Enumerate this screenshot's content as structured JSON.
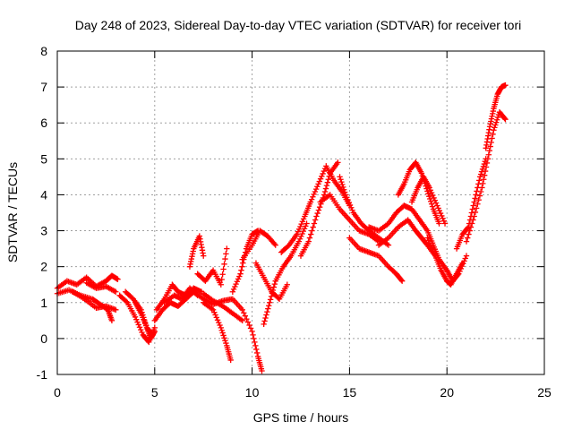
{
  "chart_data": {
    "type": "scatter",
    "title": "Day 248 of 2023, Sidereal Day-to-day VTEC variation (SDTVAR) for receiver tori",
    "xlabel": "GPS time / hours",
    "ylabel": "SDTVAR / TECUs",
    "xlim": [
      0,
      25
    ],
    "ylim": [
      -1,
      8
    ],
    "xticks": [
      0,
      5,
      10,
      15,
      20,
      25
    ],
    "yticks": [
      -1,
      0,
      1,
      2,
      3,
      4,
      5,
      6,
      7,
      8
    ],
    "grid": true,
    "marker": "+",
    "series": [
      {
        "name": "SDTVAR",
        "color": "#ff0000",
        "tracks": [
          {
            "x": [
              0.0,
              0.5,
              1.0,
              1.5,
              2.0,
              2.5,
              2.8,
              3.1
            ],
            "y": [
              1.4,
              1.6,
              1.5,
              1.7,
              1.45,
              1.6,
              1.75,
              1.65
            ]
          },
          {
            "x": [
              0.0,
              0.6,
              1.2,
              1.8,
              2.2,
              2.6,
              2.8
            ],
            "y": [
              1.25,
              1.35,
              1.2,
              1.1,
              0.95,
              0.8,
              0.5
            ]
          },
          {
            "x": [
              0.8,
              1.4,
              2.0,
              2.5,
              3.0
            ],
            "y": [
              1.3,
              1.1,
              0.85,
              0.9,
              0.8
            ]
          },
          {
            "x": [
              1.5,
              2.0,
              2.5,
              3.0
            ],
            "y": [
              1.55,
              1.4,
              1.45,
              1.3
            ]
          },
          {
            "x": [
              3.2,
              3.6,
              4.0,
              4.4,
              4.7,
              5.0
            ],
            "y": [
              1.2,
              1.0,
              0.6,
              0.1,
              -0.1,
              0.3
            ]
          },
          {
            "x": [
              3.5,
              3.9,
              4.3,
              4.6,
              4.9
            ],
            "y": [
              1.3,
              1.1,
              0.8,
              0.3,
              0.1
            ]
          },
          {
            "x": [
              4.0,
              4.3,
              4.6,
              4.8,
              5.0
            ],
            "y": [
              1.0,
              0.7,
              0.3,
              0.0,
              0.2
            ]
          },
          {
            "x": [
              5.0,
              5.4,
              5.8,
              6.2,
              6.6,
              7.0
            ],
            "y": [
              0.5,
              0.8,
              1.0,
              0.9,
              1.1,
              1.3
            ]
          },
          {
            "x": [
              5.1,
              5.5,
              5.9,
              6.2,
              6.6,
              7.0,
              7.4
            ],
            "y": [
              0.8,
              1.1,
              1.5,
              1.3,
              1.2,
              1.4,
              1.3
            ]
          },
          {
            "x": [
              5.5,
              6.0,
              6.4,
              6.8,
              7.2
            ],
            "y": [
              1.0,
              1.2,
              1.1,
              1.4,
              1.2
            ]
          },
          {
            "x": [
              6.8,
              7.0,
              7.3,
              7.5
            ],
            "y": [
              2.0,
              2.5,
              2.85,
              2.3
            ]
          },
          {
            "x": [
              7.2,
              7.6,
              8.0,
              8.4,
              8.7
            ],
            "y": [
              1.8,
              1.6,
              1.9,
              1.5,
              2.5
            ]
          },
          {
            "x": [
              7.0,
              7.5,
              8.0,
              8.5,
              9.0,
              9.5,
              10.0,
              10.3,
              10.5
            ],
            "y": [
              1.3,
              1.1,
              0.95,
              1.05,
              1.1,
              0.8,
              0.2,
              -0.5,
              -0.9
            ]
          },
          {
            "x": [
              7.5,
              8.0,
              8.4,
              8.7,
              8.9
            ],
            "y": [
              1.0,
              0.8,
              0.3,
              -0.2,
              -0.6
            ]
          },
          {
            "x": [
              7.5,
              8.0,
              8.5,
              9.0,
              9.5
            ],
            "y": [
              1.25,
              1.05,
              0.9,
              0.7,
              0.5
            ]
          },
          {
            "x": [
              9.0,
              9.4,
              9.7,
              10.0,
              10.3
            ],
            "y": [
              1.3,
              1.8,
              2.5,
              2.9,
              3.0
            ]
          },
          {
            "x": [
              9.5,
              10.0,
              10.4,
              10.8,
              11.2
            ],
            "y": [
              2.2,
              2.6,
              3.0,
              2.85,
              2.6
            ]
          },
          {
            "x": [
              10.2,
              10.6,
              11.0,
              11.4,
              11.8
            ],
            "y": [
              2.1,
              1.7,
              1.3,
              1.1,
              1.5
            ]
          },
          {
            "x": [
              10.6,
              10.9,
              11.2,
              11.6,
              12.0,
              12.4,
              12.8
            ],
            "y": [
              0.4,
              1.0,
              1.6,
              2.0,
              2.3,
              2.7,
              3.2
            ]
          },
          {
            "x": [
              11.5,
              11.9,
              12.3,
              12.7,
              13.0
            ],
            "y": [
              2.4,
              2.6,
              2.9,
              3.4,
              3.8
            ]
          },
          {
            "x": [
              12.5,
              12.9,
              13.3,
              13.7,
              14.0,
              14.4
            ],
            "y": [
              2.3,
              2.7,
              3.4,
              4.0,
              4.6,
              4.9
            ]
          },
          {
            "x": [
              13.0,
              13.4,
              13.8,
              14.2,
              14.6,
              15.0
            ],
            "y": [
              3.8,
              4.3,
              4.8,
              4.4,
              4.1,
              3.7
            ]
          },
          {
            "x": [
              13.5,
              14.0,
              14.5,
              15.0,
              15.5,
              16.0,
              16.5
            ],
            "y": [
              3.8,
              4.0,
              3.6,
              3.3,
              3.0,
              2.9,
              2.7
            ]
          },
          {
            "x": [
              14.5,
              14.8,
              15.2,
              15.6,
              16.0,
              16.5,
              17.0
            ],
            "y": [
              4.5,
              4.0,
              3.5,
              3.2,
              3.0,
              2.8,
              2.6
            ]
          },
          {
            "x": [
              15.0,
              15.5,
              16.0,
              16.5,
              17.0,
              17.4,
              17.7
            ],
            "y": [
              2.8,
              2.5,
              2.4,
              2.3,
              2.0,
              1.8,
              1.6
            ]
          },
          {
            "x": [
              16.0,
              16.5,
              17.0,
              17.4,
              17.8,
              18.2,
              18.6
            ],
            "y": [
              3.1,
              3.0,
              3.2,
              3.5,
              3.7,
              3.6,
              3.3
            ]
          },
          {
            "x": [
              16.5,
              17.0,
              17.5,
              18.0,
              18.4,
              18.7,
              19.0,
              19.4
            ],
            "y": [
              2.6,
              2.8,
              3.1,
              3.3,
              3.0,
              2.8,
              2.6,
              2.3
            ]
          },
          {
            "x": [
              17.5,
              17.8,
              18.1,
              18.4,
              18.7,
              19.0,
              19.3,
              19.6
            ],
            "y": [
              4.0,
              4.3,
              4.7,
              4.9,
              4.6,
              4.1,
              3.6,
              3.2
            ]
          },
          {
            "x": [
              18.2,
              18.5,
              18.8,
              19.1,
              19.5,
              19.9
            ],
            "y": [
              3.8,
              4.2,
              4.5,
              4.2,
              3.7,
              3.2
            ]
          },
          {
            "x": [
              18.6,
              19.0,
              19.3,
              19.6,
              20.0,
              20.3,
              20.6,
              21.0
            ],
            "y": [
              3.3,
              3.0,
              2.6,
              2.2,
              1.9,
              1.6,
              1.8,
              2.3
            ]
          },
          {
            "x": [
              19.0,
              19.4,
              19.7,
              20.0,
              20.2,
              20.5,
              20.8
            ],
            "y": [
              2.8,
              2.3,
              1.9,
              1.6,
              1.5,
              1.8,
              2.1
            ]
          },
          {
            "x": [
              20.5,
              20.8,
              21.1,
              21.4,
              21.7,
              22.0
            ],
            "y": [
              2.5,
              2.9,
              3.1,
              3.8,
              4.5,
              5.0
            ]
          },
          {
            "x": [
              21.0,
              21.4,
              21.8,
              22.1,
              22.4,
              22.7,
              23.0
            ],
            "y": [
              2.7,
              3.4,
              4.2,
              5.0,
              5.8,
              6.3,
              6.1
            ]
          },
          {
            "x": [
              22.0,
              22.2,
              22.4,
              22.6,
              22.8,
              23.0
            ],
            "y": [
              5.3,
              5.9,
              6.4,
              6.8,
              7.0,
              7.05
            ]
          }
        ]
      }
    ]
  }
}
